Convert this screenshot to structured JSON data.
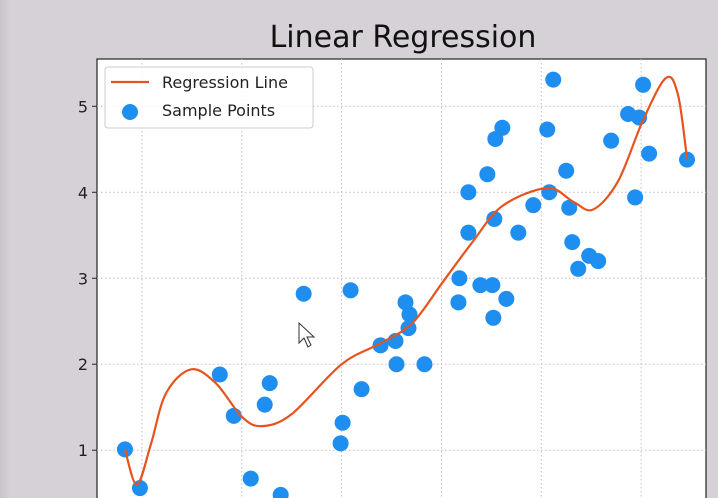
{
  "chart_data": {
    "type": "scatter",
    "title": "Linear Regression",
    "xlabel": "",
    "ylabel": "",
    "ylim": [
      0.2,
      5.55
    ],
    "xlim": [
      -0.45,
      5.65
    ],
    "yticks": [
      1,
      2,
      3,
      4,
      5
    ],
    "xgrid": [
      0,
      1,
      2,
      3,
      4,
      5
    ],
    "grid": true,
    "legend": {
      "placement": "top-left",
      "entries": [
        "Regression Line",
        "Sample Points"
      ]
    },
    "colors": {
      "line": "#e6541e",
      "points": "#1e8ff0",
      "background": "#d6d1d7"
    },
    "series": [
      {
        "name": "Sample Points",
        "type": "scatter",
        "points": [
          [
            -0.17,
            1.01
          ],
          [
            -0.02,
            0.56
          ],
          [
            0.78,
            1.88
          ],
          [
            0.92,
            1.4
          ],
          [
            1.09,
            0.67
          ],
          [
            1.23,
            1.53
          ],
          [
            1.28,
            1.78
          ],
          [
            1.39,
            0.48
          ],
          [
            1.62,
            2.82
          ],
          [
            1.99,
            1.08
          ],
          [
            2.01,
            1.32
          ],
          [
            2.09,
            2.86
          ],
          [
            2.2,
            1.71
          ],
          [
            2.39,
            2.22
          ],
          [
            2.54,
            2.27
          ],
          [
            2.55,
            2.0
          ],
          [
            2.64,
            2.72
          ],
          [
            2.68,
            2.58
          ],
          [
            2.67,
            2.42
          ],
          [
            2.83,
            2.0
          ],
          [
            3.17,
            2.72
          ],
          [
            3.18,
            3.0
          ],
          [
            3.27,
            4.0
          ],
          [
            3.27,
            3.53
          ],
          [
            3.39,
            2.92
          ],
          [
            3.46,
            4.21
          ],
          [
            3.51,
            2.92
          ],
          [
            3.52,
            2.54
          ],
          [
            3.53,
            3.69
          ],
          [
            3.54,
            4.62
          ],
          [
            3.61,
            4.75
          ],
          [
            3.65,
            2.76
          ],
          [
            3.77,
            3.53
          ],
          [
            3.92,
            3.85
          ],
          [
            4.06,
            4.73
          ],
          [
            4.08,
            4.0
          ],
          [
            4.12,
            5.31
          ],
          [
            4.25,
            4.25
          ],
          [
            4.28,
            3.82
          ],
          [
            4.31,
            3.42
          ],
          [
            4.37,
            3.11
          ],
          [
            4.48,
            3.26
          ],
          [
            4.57,
            3.2
          ],
          [
            4.7,
            4.6
          ],
          [
            4.87,
            4.91
          ],
          [
            4.94,
            3.94
          ],
          [
            4.98,
            4.87
          ],
          [
            5.02,
            5.25
          ],
          [
            5.08,
            4.45
          ],
          [
            5.46,
            4.38
          ]
        ]
      },
      {
        "name": "Regression Line",
        "type": "line",
        "points": [
          [
            -0.17,
            1.01
          ],
          [
            -0.05,
            0.6
          ],
          [
            0.09,
            1.07
          ],
          [
            0.24,
            1.66
          ],
          [
            0.49,
            1.94
          ],
          [
            0.74,
            1.78
          ],
          [
            1.0,
            1.39
          ],
          [
            1.2,
            1.28
          ],
          [
            1.5,
            1.42
          ],
          [
            2.0,
            2.0
          ],
          [
            2.4,
            2.25
          ],
          [
            2.71,
            2.48
          ],
          [
            3.01,
            2.95
          ],
          [
            3.31,
            3.42
          ],
          [
            3.61,
            3.84
          ],
          [
            4.06,
            4.05
          ],
          [
            4.32,
            3.89
          ],
          [
            4.52,
            3.8
          ],
          [
            4.77,
            4.13
          ],
          [
            5.02,
            4.84
          ],
          [
            5.25,
            5.33
          ],
          [
            5.37,
            5.13
          ],
          [
            5.46,
            4.39
          ]
        ]
      }
    ]
  }
}
